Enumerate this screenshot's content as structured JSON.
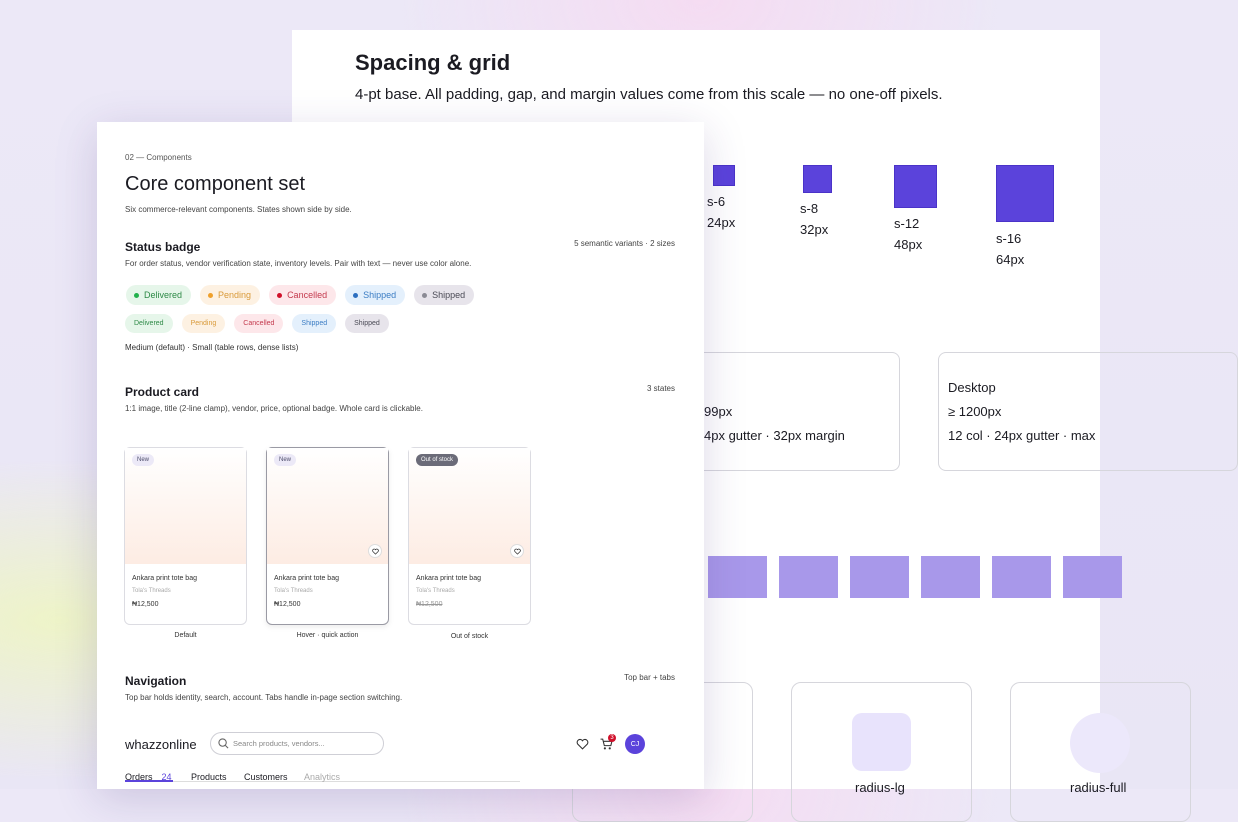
{
  "spacing_panel": {
    "title": "Spacing & grid",
    "subtitle": "4-pt base. All padding, gap, and margin values come from this scale — no one-off pixels.",
    "scale": [
      {
        "token": "s-6",
        "size": "24px"
      },
      {
        "token": "s-8",
        "size": "32px"
      },
      {
        "token": "s-12",
        "size": "48px"
      },
      {
        "token": "s-16",
        "size": "64px"
      }
    ],
    "breakpoints": [
      {
        "range": "99px",
        "columns": "4px gutter · 32px margin"
      },
      {
        "name": "Desktop",
        "range": "≥ 1200px",
        "columns": "12 col · 24px gutter · max"
      }
    ],
    "radius": [
      "radius-lg",
      "radius-full"
    ]
  },
  "components": {
    "eyebrow": "02 — Components",
    "title": "Core component set",
    "subtitle": "Six commerce-relevant components. States shown side by side.",
    "status_badge": {
      "title": "Status badge",
      "meta": "5 semantic variants · 2 sizes",
      "description": "For order status, vendor verification state, inventory levels. Pair with text — never use color alone.",
      "medium": [
        "Delivered",
        "Pending",
        "Cancelled",
        "Shipped",
        "Shipped"
      ],
      "small": [
        "Delivered",
        "Pending",
        "Cancelled",
        "Shipped",
        "Shipped"
      ],
      "note": "Medium (default) · Small (table rows, dense lists)"
    },
    "product_card": {
      "title": "Product card",
      "meta": "3 states",
      "description": "1:1 image, title (2-line clamp), vendor, price, optional badge. Whole card is clickable.",
      "cards": [
        {
          "badge": "New",
          "title": "Ankara print tote bag",
          "vendor": "Tola's Threads",
          "price": "₦12,500",
          "caption": "Default"
        },
        {
          "badge": "New",
          "title": "Ankara print tote bag",
          "vendor": "Tola's Threads",
          "price": "₦12,500",
          "caption": "Hover · quick action"
        },
        {
          "badge": "Out of stock",
          "title": "Ankara print tote bag",
          "vendor": "Tola's Threads",
          "price": "₦12,500",
          "caption": "Out of stock"
        }
      ]
    },
    "navigation": {
      "title": "Navigation",
      "meta": "Top bar + tabs",
      "description": "Top bar holds identity, search, account. Tabs handle in-page section switching.",
      "brand": "whazzonline",
      "search_placeholder": "Search products, vendors...",
      "cart_count": 3,
      "avatar": "CJ",
      "tabs": [
        {
          "label": "Orders",
          "count": 24
        },
        {
          "label": "Products"
        },
        {
          "label": "Customers"
        },
        {
          "label": "Analytics"
        }
      ]
    }
  }
}
